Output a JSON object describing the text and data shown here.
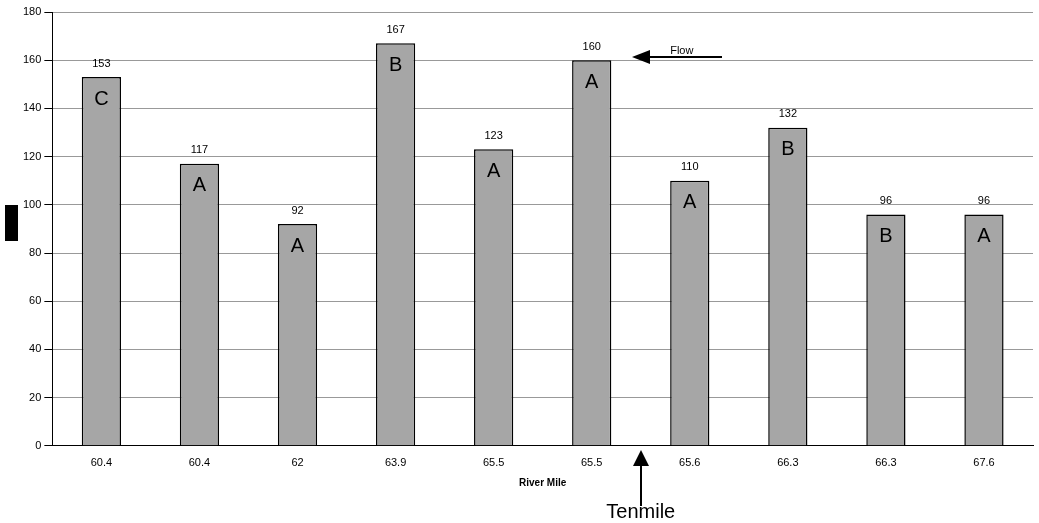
{
  "chart_data": {
    "type": "bar",
    "xlabel": "River Mile",
    "categories": [
      "60.4",
      "60.4",
      "62",
      "63.9",
      "65.5",
      "65.5",
      "65.6",
      "66.3",
      "66.3",
      "67.6"
    ],
    "values": [
      153,
      117,
      92,
      167,
      123,
      160,
      110,
      132,
      96,
      96
    ],
    "color": "#a6a6a6",
    "ylim": [
      0,
      180
    ],
    "yticks": [
      0,
      20,
      40,
      60,
      80,
      100,
      120,
      140,
      160,
      180
    ],
    "grid": "y",
    "data_labels": true,
    "legend": false,
    "annotations": [
      "C",
      "A",
      "A",
      "B",
      "A",
      "A",
      "A",
      "B",
      "B",
      "A",
      "Flow",
      "Tenmile"
    ]
  }
}
